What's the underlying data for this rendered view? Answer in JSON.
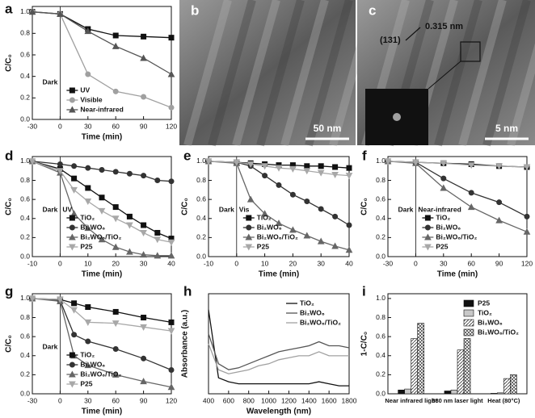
{
  "chart_data": [
    {
      "type": "line",
      "label": "a",
      "xlabel": "Time (min)",
      "ylabel": "C/C₀",
      "x": [
        -30,
        0,
        30,
        60,
        90,
        120
      ],
      "xlim": [
        -30,
        120
      ],
      "xticks": [
        -30,
        0,
        30,
        60,
        90,
        120
      ],
      "ylim": [
        0,
        1.05
      ],
      "yticks": [
        {
          "value": 0,
          "label": "0.0"
        },
        0.2,
        0.4,
        0.6,
        0.8,
        {
          "value": 1,
          "label": "1.0"
        }
      ],
      "vline": 0,
      "annotations": [
        "Dark"
      ],
      "legend": "lower left",
      "series": [
        {
          "name": "UV",
          "color": "#111111",
          "marker": "square",
          "values": [
            1.0,
            0.98,
            0.84,
            0.78,
            0.77,
            0.76
          ]
        },
        {
          "name": "Visible",
          "color": "#a0a0a0",
          "marker": "circle",
          "values": [
            1.0,
            0.98,
            0.42,
            0.26,
            0.21,
            0.11
          ]
        },
        {
          "name": "Near-infrared",
          "color": "#555555",
          "marker": "triangle",
          "values": [
            1.0,
            0.98,
            0.82,
            0.68,
            0.57,
            0.42
          ]
        }
      ]
    },
    {
      "type": "image",
      "label": "b",
      "scale_bar": "50 nm"
    },
    {
      "type": "image",
      "label": "c",
      "annotations": [
        "(131)",
        "0.315 nm"
      ],
      "scale_bar": "5 nm"
    },
    {
      "type": "line",
      "label": "d",
      "xlabel": "Time (min)",
      "ylabel": "C/C₀",
      "x": [
        -10,
        0,
        5,
        10,
        15,
        20,
        25,
        30,
        35,
        40
      ],
      "xlim": [
        -10,
        40
      ],
      "xticks": [
        -10,
        0,
        10,
        20,
        30,
        40
      ],
      "ylim": [
        0,
        1.05
      ],
      "yticks": [
        {
          "value": 0,
          "label": "0.0"
        },
        0.2,
        0.4,
        0.6,
        0.8,
        {
          "value": 1,
          "label": "1.0"
        }
      ],
      "vline": 0,
      "annotations": [
        "Dark",
        "UV"
      ],
      "legend": "lower left",
      "series": [
        {
          "name": "TiO₂",
          "color": "#111111",
          "marker": "square",
          "values": [
            1.0,
            0.92,
            0.82,
            0.72,
            0.62,
            0.52,
            0.42,
            0.33,
            0.25,
            0.19
          ]
        },
        {
          "name": "Bi₂WO₆",
          "color": "#333333",
          "marker": "circle",
          "values": [
            1.0,
            0.97,
            0.95,
            0.93,
            0.91,
            0.89,
            0.87,
            0.85,
            0.8,
            0.79
          ]
        },
        {
          "name": "Bi₂WO₆/TiO₂",
          "color": "#666666",
          "marker": "triangle",
          "values": [
            1.0,
            0.88,
            0.45,
            0.3,
            0.18,
            0.1,
            0.05,
            0.02,
            0.01,
            0.01
          ]
        },
        {
          "name": "P25",
          "color": "#a8a8a8",
          "marker": "down",
          "values": [
            1.0,
            0.9,
            0.7,
            0.58,
            0.48,
            0.4,
            0.33,
            0.25,
            0.18,
            0.15
          ]
        }
      ]
    },
    {
      "type": "line",
      "label": "e",
      "xlabel": "Time (min)",
      "ylabel": "C/C₀",
      "x": [
        -10,
        0,
        5,
        10,
        15,
        20,
        25,
        30,
        35,
        40
      ],
      "xlim": [
        -10,
        40
      ],
      "xticks": [
        -10,
        0,
        10,
        20,
        30,
        40
      ],
      "ylim": [
        0,
        1.05
      ],
      "yticks": [
        {
          "value": 0,
          "label": "0.0"
        },
        0.2,
        0.4,
        0.6,
        0.8,
        {
          "value": 1,
          "label": "1.0"
        }
      ],
      "vline": 0,
      "annotations": [
        "Dark",
        "Vis"
      ],
      "legend": "lower left",
      "series": [
        {
          "name": "TiO₂",
          "color": "#111111",
          "marker": "square",
          "values": [
            1.0,
            0.99,
            0.98,
            0.97,
            0.96,
            0.96,
            0.95,
            0.95,
            0.94,
            0.93
          ]
        },
        {
          "name": "Bi₂WO₆",
          "color": "#333333",
          "marker": "circle",
          "values": [
            1.0,
            0.99,
            0.95,
            0.85,
            0.75,
            0.65,
            0.58,
            0.5,
            0.42,
            0.33
          ]
        },
        {
          "name": "Bi₂WO₆/TiO₂",
          "color": "#666666",
          "marker": "triangle",
          "values": [
            1.0,
            0.98,
            0.6,
            0.45,
            0.35,
            0.28,
            0.22,
            0.16,
            0.11,
            0.07
          ]
        },
        {
          "name": "P25",
          "color": "#a8a8a8",
          "marker": "down",
          "values": [
            1.0,
            0.99,
            0.97,
            0.95,
            0.93,
            0.92,
            0.9,
            0.88,
            0.86,
            0.85
          ]
        }
      ]
    },
    {
      "type": "line",
      "label": "f",
      "xlabel": "Time (min)",
      "ylabel": "C/C₀",
      "x": [
        -30,
        0,
        30,
        60,
        90,
        120
      ],
      "xlim": [
        -30,
        120
      ],
      "xticks": [
        -30,
        0,
        30,
        60,
        90,
        120
      ],
      "ylim": [
        0,
        1.05
      ],
      "yticks": [
        {
          "value": 0,
          "label": "0.0"
        },
        0.2,
        0.4,
        0.6,
        0.8,
        {
          "value": 1,
          "label": "1.0"
        }
      ],
      "vline": 0,
      "annotations": [
        "Dark",
        "Near-infrared"
      ],
      "legend": "lower left",
      "series": [
        {
          "name": "TiO₂",
          "color": "#111111",
          "marker": "square",
          "values": [
            1.0,
            0.99,
            0.98,
            0.97,
            0.95,
            0.94
          ]
        },
        {
          "name": "Bi₂WO₆",
          "color": "#333333",
          "marker": "circle",
          "values": [
            1.0,
            0.99,
            0.82,
            0.67,
            0.57,
            0.42
          ]
        },
        {
          "name": "Bi₂WO₆/TiO₂",
          "color": "#666666",
          "marker": "triangle",
          "values": [
            1.0,
            0.98,
            0.72,
            0.52,
            0.38,
            0.26
          ]
        },
        {
          "name": "P25",
          "color": "#a8a8a8",
          "marker": "down",
          "values": [
            1.0,
            0.99,
            0.98,
            0.96,
            0.95,
            0.94
          ]
        }
      ]
    },
    {
      "type": "line",
      "label": "g",
      "xlabel": "Time (min)",
      "ylabel": "C/C₀",
      "x": [
        -30,
        0,
        15,
        30,
        60,
        90,
        120
      ],
      "xlim": [
        -30,
        120
      ],
      "xticks": [
        -30,
        0,
        30,
        60,
        90,
        120
      ],
      "ylim": [
        0,
        1.05
      ],
      "yticks": [
        {
          "value": 0,
          "label": "0.0"
        },
        0.2,
        0.4,
        0.6,
        0.8,
        {
          "value": 1,
          "label": "1.0"
        }
      ],
      "vline": 0,
      "annotations": [
        "Dark"
      ],
      "legend": "lower left",
      "series": [
        {
          "name": "TiO₂",
          "color": "#111111",
          "marker": "square",
          "values": [
            1.0,
            0.99,
            0.95,
            0.91,
            0.86,
            0.8,
            0.75
          ]
        },
        {
          "name": "Bi₂WO₆",
          "color": "#333333",
          "marker": "circle",
          "values": [
            1.0,
            0.98,
            0.62,
            0.55,
            0.47,
            0.37,
            0.25
          ]
        },
        {
          "name": "Bi₂WO₆/TiO₂",
          "color": "#666666",
          "marker": "triangle",
          "values": [
            1.0,
            0.97,
            0.4,
            0.3,
            0.2,
            0.13,
            0.07
          ]
        },
        {
          "name": "P25",
          "color": "#a8a8a8",
          "marker": "down",
          "values": [
            1.0,
            0.99,
            0.88,
            0.75,
            0.74,
            0.7,
            0.66
          ]
        }
      ]
    },
    {
      "type": "line",
      "label": "h",
      "xlabel": "Wavelength (nm)",
      "ylabel": "Absorbance (a.u.)",
      "x": [
        400,
        500,
        600,
        700,
        800,
        900,
        1000,
        1100,
        1200,
        1300,
        1400,
        1500,
        1600,
        1700,
        1800
      ],
      "xlim": [
        400,
        1800
      ],
      "xticks": [
        400,
        600,
        800,
        1000,
        1200,
        1400,
        1600,
        1800
      ],
      "ylim": [
        0,
        0.5
      ],
      "legend": "upper right",
      "series": [
        {
          "name": "TiO₂",
          "color": "#111111",
          "values": [
            0.42,
            0.08,
            0.06,
            0.05,
            0.05,
            0.05,
            0.05,
            0.05,
            0.05,
            0.05,
            0.05,
            0.06,
            0.05,
            0.04,
            0.04
          ]
        },
        {
          "name": "Bi₂WO₆",
          "color": "#555555",
          "values": [
            0.3,
            0.15,
            0.12,
            0.13,
            0.15,
            0.17,
            0.19,
            0.21,
            0.22,
            0.23,
            0.24,
            0.26,
            0.24,
            0.24,
            0.23
          ]
        },
        {
          "name": "Bi₂WO₆/TiO₂",
          "color": "#a0a0a0",
          "values": [
            0.25,
            0.12,
            0.1,
            0.11,
            0.12,
            0.14,
            0.15,
            0.17,
            0.18,
            0.19,
            0.19,
            0.21,
            0.19,
            0.19,
            0.19
          ]
        }
      ]
    },
    {
      "type": "bar",
      "label": "i",
      "ylabel": "1-C/C₀",
      "categories": [
        "Near infrared light",
        "980 nm laser light",
        "Heat (80°C)"
      ],
      "ylim": [
        0,
        1.05
      ],
      "yticks": [
        {
          "value": 0,
          "label": "0.0"
        },
        0.2,
        0.4,
        0.6,
        0.8,
        {
          "value": 1,
          "label": "1.0"
        }
      ],
      "legend": "upper right",
      "series": [
        {
          "name": "P25",
          "color": "#111111",
          "values": [
            0.04,
            0.03,
            0.005
          ]
        },
        {
          "name": "TiO₂",
          "color": "#c8c8c8",
          "values": [
            0.05,
            0.04,
            0.01
          ]
        },
        {
          "name": "Bi₂WO₆",
          "color": "#ffffff",
          "pattern": "diagonal",
          "values": [
            0.58,
            0.46,
            0.16
          ]
        },
        {
          "name": "Bi₂WO₆/TiO₂",
          "color": "#ffffff",
          "pattern": "cross",
          "values": [
            0.74,
            0.58,
            0.2
          ]
        }
      ]
    }
  ]
}
